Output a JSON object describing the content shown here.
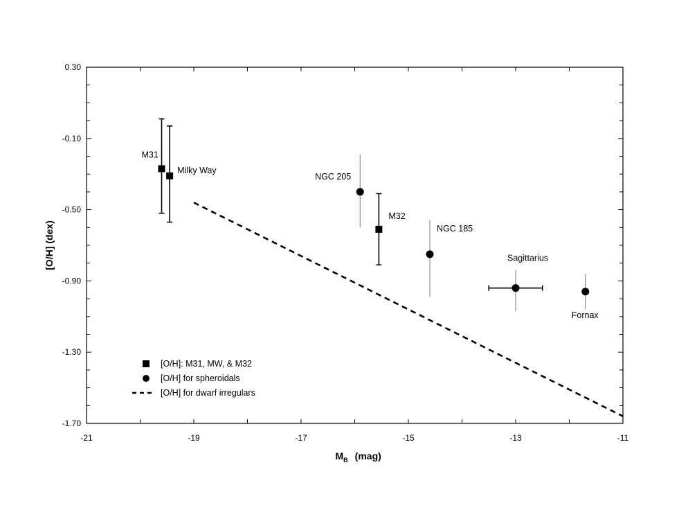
{
  "chart_data": {
    "type": "scatter",
    "xlabel": "M",
    "xlabel_subscript": "B",
    "xlabel_unit": "(mag)",
    "ylabel": "[O/H]  (dex)",
    "xlim": [
      -21,
      -11
    ],
    "ylim": [
      -1.7,
      0.3
    ],
    "x_ticks": [
      -21,
      -19,
      -17,
      -15,
      -13,
      -11
    ],
    "x_tick_labels": [
      "-21",
      "-19",
      "-17",
      "-15",
      "-13",
      "-11"
    ],
    "y_ticks": [
      0.3,
      -0.1,
      -0.5,
      -0.9,
      -1.3,
      -1.7
    ],
    "y_tick_labels": [
      "0.30",
      "-0.10",
      "-0.50",
      "-0.90",
      "-1.30",
      "-1.70"
    ],
    "grid": false,
    "legend_position": "bottom-left",
    "series": [
      {
        "name": "[O/H]: M31, MW, & M32",
        "marker": "square",
        "points": [
          {
            "label": "M31",
            "x": -19.6,
            "y": -0.27,
            "yerr_low": -0.52,
            "yerr_high": 0.01,
            "error_bar_style": "capped"
          },
          {
            "label": "Milky Way",
            "x": -19.45,
            "y": -0.31,
            "yerr_low": -0.57,
            "yerr_high": -0.03,
            "error_bar_style": "capped"
          },
          {
            "label": "M32",
            "x": -15.55,
            "y": -0.61,
            "yerr_low": -0.81,
            "yerr_high": -0.41,
            "error_bar_style": "capped"
          }
        ]
      },
      {
        "name": "[O/H] for spheroidals",
        "marker": "circle",
        "points": [
          {
            "label": "NGC 205",
            "x": -15.9,
            "y": -0.4,
            "yerr_low": -0.6,
            "yerr_high": -0.19,
            "error_bar_style": "thin"
          },
          {
            "label": "NGC 185",
            "x": -14.6,
            "y": -0.75,
            "yerr_low": -0.99,
            "yerr_high": -0.56,
            "error_bar_style": "thin"
          },
          {
            "label": "Sagittarius",
            "x": -13.0,
            "y": -0.94,
            "yerr_low": -1.07,
            "yerr_high": -0.84,
            "xerr_low": -13.5,
            "xerr_high": -12.5,
            "error_bar_style": "thin"
          },
          {
            "label": "Fornax",
            "x": -11.7,
            "y": -0.96,
            "yerr_low": -1.06,
            "yerr_high": -0.86,
            "error_bar_style": "thin"
          }
        ]
      },
      {
        "name": "[O/H] for dwarf irregulars",
        "line_style": "dashed",
        "line": [
          [
            -19.0,
            -0.46
          ],
          [
            -11.0,
            -1.66
          ]
        ]
      }
    ]
  }
}
